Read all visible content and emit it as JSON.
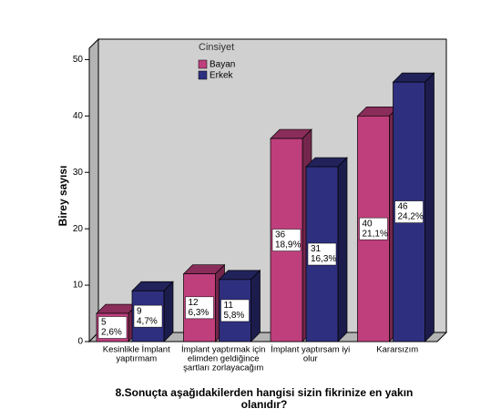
{
  "chart_data": {
    "type": "bar3d",
    "x_label": [
      "8.Sonuçta aşağıdakilerden hangisi sizin fikrinize en yakın",
      "olanıdır?"
    ],
    "y_label": "Birey sayısı",
    "legend_title": "Cinsiyet",
    "categories": [
      [
        "Kesinlikle İmplant",
        "yaptırmam"
      ],
      [
        "İmplant yaptırmak için",
        "elimden geldiğince",
        "şartları zorlayacağım"
      ],
      [
        "İmplant yaptırsam iyi",
        "olur"
      ],
      [
        "Kararsızım"
      ]
    ],
    "series": [
      {
        "name": "Bayan",
        "color": "#bf3f7d",
        "values": [
          5,
          12,
          36,
          40
        ],
        "percent_labels": [
          "2,6%",
          "6,3%",
          "18,9%",
          "21,1%"
        ]
      },
      {
        "name": "Erkek",
        "color": "#2f2f7f",
        "values": [
          9,
          11,
          31,
          46
        ],
        "percent_labels": [
          "4,7%",
          "5,8%",
          "16,3%",
          "24,2%"
        ]
      }
    ],
    "ylim": [
      0,
      52
    ],
    "yticks": [
      0,
      10,
      20,
      30,
      40,
      50
    ]
  }
}
